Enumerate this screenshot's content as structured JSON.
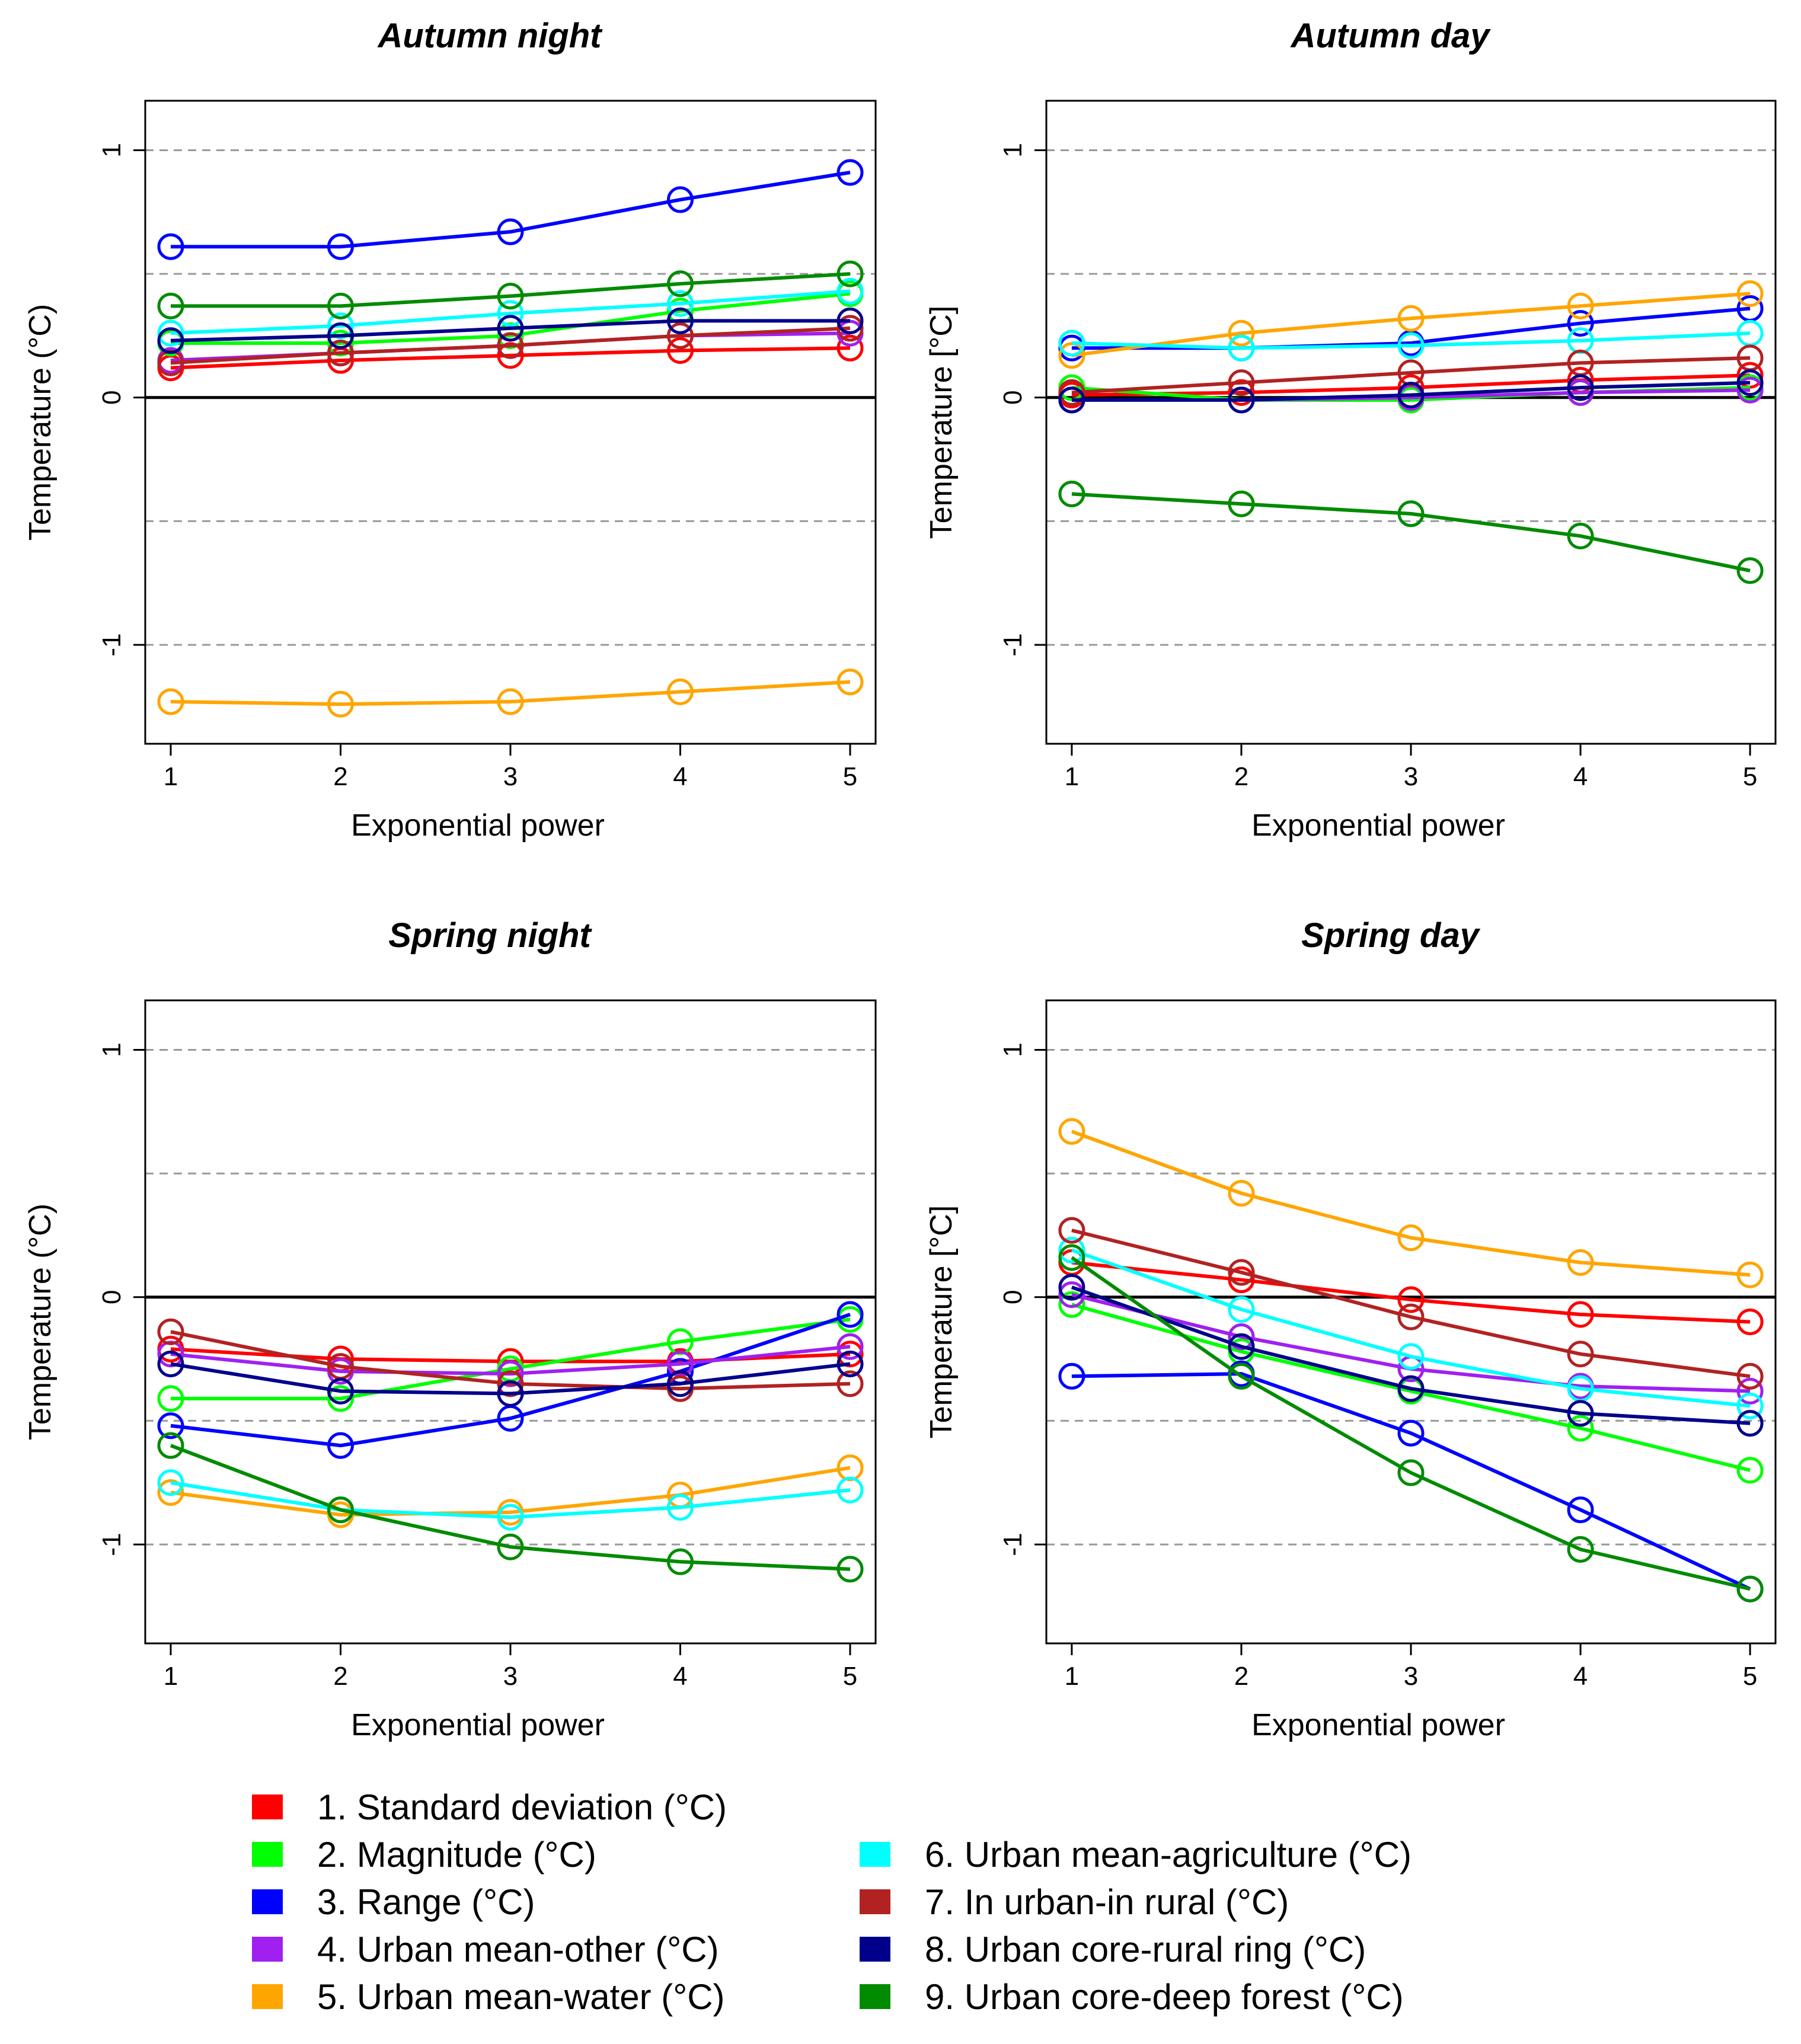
{
  "chart_data": [
    {
      "type": "line",
      "title": "Autumn night",
      "xlabel": "Exponential power",
      "ylabel": "Temperature (°C)",
      "x": [
        1,
        2,
        3,
        4,
        5
      ],
      "ylim": [
        -1.4,
        1.2
      ],
      "yticks": [
        -1,
        0,
        1
      ],
      "dashed_gridlines": [
        1,
        0.5,
        -0.5,
        -1
      ],
      "solid_reference": 0,
      "series": [
        {
          "id": 1,
          "values": [
            0.12,
            0.15,
            0.17,
            0.19,
            0.2
          ]
        },
        {
          "id": 2,
          "values": [
            0.22,
            0.22,
            0.25,
            0.35,
            0.42
          ]
        },
        {
          "id": 3,
          "values": [
            0.61,
            0.61,
            0.67,
            0.8,
            0.91
          ]
        },
        {
          "id": 4,
          "values": [
            0.15,
            0.18,
            0.21,
            0.25,
            0.26
          ]
        },
        {
          "id": 5,
          "values": [
            -1.23,
            -1.24,
            -1.23,
            -1.19,
            -1.15
          ]
        },
        {
          "id": 6,
          "values": [
            0.26,
            0.29,
            0.34,
            0.38,
            0.43
          ]
        },
        {
          "id": 7,
          "values": [
            0.14,
            0.18,
            0.21,
            0.25,
            0.28
          ]
        },
        {
          "id": 8,
          "values": [
            0.23,
            0.25,
            0.28,
            0.31,
            0.31
          ]
        },
        {
          "id": 9,
          "values": [
            0.37,
            0.37,
            0.41,
            0.46,
            0.5
          ]
        }
      ]
    },
    {
      "type": "line",
      "title": "Autumn day",
      "xlabel": "Exponential power",
      "ylabel": "Temperature [°C]",
      "x": [
        1,
        2,
        3,
        4,
        5
      ],
      "ylim": [
        -1.4,
        1.2
      ],
      "yticks": [
        -1,
        0,
        1
      ],
      "dashed_gridlines": [
        1,
        0.5,
        -0.5,
        -1
      ],
      "solid_reference": 0,
      "series": [
        {
          "id": 1,
          "values": [
            0.01,
            0.02,
            0.04,
            0.07,
            0.09
          ]
        },
        {
          "id": 2,
          "values": [
            0.04,
            -0.01,
            -0.01,
            0.02,
            0.04
          ]
        },
        {
          "id": 3,
          "values": [
            0.2,
            0.2,
            0.22,
            0.3,
            0.36
          ]
        },
        {
          "id": 4,
          "values": [
            -0.01,
            -0.01,
            0.0,
            0.02,
            0.03
          ]
        },
        {
          "id": 5,
          "values": [
            0.17,
            0.26,
            0.32,
            0.37,
            0.42
          ]
        },
        {
          "id": 6,
          "values": [
            0.22,
            0.2,
            0.21,
            0.23,
            0.26
          ]
        },
        {
          "id": 7,
          "values": [
            0.02,
            0.06,
            0.1,
            0.14,
            0.16
          ]
        },
        {
          "id": 8,
          "values": [
            -0.01,
            -0.01,
            0.01,
            0.04,
            0.06
          ]
        },
        {
          "id": 9,
          "values": [
            -0.39,
            -0.43,
            -0.47,
            -0.56,
            -0.7
          ]
        }
      ]
    },
    {
      "type": "line",
      "title": "Spring night",
      "xlabel": "Exponential power",
      "ylabel": "Temperature (°C)",
      "x": [
        1,
        2,
        3,
        4,
        5
      ],
      "ylim": [
        -1.4,
        1.2
      ],
      "yticks": [
        -1,
        0,
        1
      ],
      "dashed_gridlines": [
        1,
        0.5,
        -0.5,
        -1
      ],
      "solid_reference": 0,
      "series": [
        {
          "id": 1,
          "values": [
            -0.21,
            -0.25,
            -0.26,
            -0.26,
            -0.23
          ]
        },
        {
          "id": 2,
          "values": [
            -0.41,
            -0.41,
            -0.29,
            -0.18,
            -0.09
          ]
        },
        {
          "id": 3,
          "values": [
            -0.52,
            -0.6,
            -0.49,
            -0.3,
            -0.07
          ]
        },
        {
          "id": 4,
          "values": [
            -0.23,
            -0.3,
            -0.31,
            -0.27,
            -0.2
          ]
        },
        {
          "id": 5,
          "values": [
            -0.79,
            -0.88,
            -0.87,
            -0.8,
            -0.69
          ]
        },
        {
          "id": 6,
          "values": [
            -0.75,
            -0.86,
            -0.89,
            -0.85,
            -0.78
          ]
        },
        {
          "id": 7,
          "values": [
            -0.14,
            -0.28,
            -0.35,
            -0.37,
            -0.35
          ]
        },
        {
          "id": 8,
          "values": [
            -0.27,
            -0.38,
            -0.39,
            -0.35,
            -0.27
          ]
        },
        {
          "id": 9,
          "values": [
            -0.6,
            -0.86,
            -1.01,
            -1.07,
            -1.1
          ]
        }
      ]
    },
    {
      "type": "line",
      "title": "Spring day",
      "xlabel": "Exponential power",
      "ylabel": "Temperature [°C]",
      "x": [
        1,
        2,
        3,
        4,
        5
      ],
      "ylim": [
        -1.4,
        1.2
      ],
      "yticks": [
        -1,
        0,
        1
      ],
      "dashed_gridlines": [
        1,
        0.5,
        -0.5,
        -1
      ],
      "solid_reference": 0,
      "series": [
        {
          "id": 1,
          "values": [
            0.14,
            0.07,
            -0.01,
            -0.07,
            -0.1
          ]
        },
        {
          "id": 2,
          "values": [
            -0.03,
            -0.22,
            -0.38,
            -0.53,
            -0.7
          ]
        },
        {
          "id": 3,
          "values": [
            -0.32,
            -0.31,
            -0.55,
            -0.86,
            -1.18
          ]
        },
        {
          "id": 4,
          "values": [
            0.01,
            -0.16,
            -0.29,
            -0.36,
            -0.38
          ]
        },
        {
          "id": 5,
          "values": [
            0.67,
            0.42,
            0.24,
            0.14,
            0.09
          ]
        },
        {
          "id": 6,
          "values": [
            0.19,
            -0.05,
            -0.24,
            -0.37,
            -0.44
          ]
        },
        {
          "id": 7,
          "values": [
            0.27,
            0.1,
            -0.08,
            -0.23,
            -0.32
          ]
        },
        {
          "id": 8,
          "values": [
            0.04,
            -0.2,
            -0.37,
            -0.47,
            -0.51
          ]
        },
        {
          "id": 9,
          "values": [
            0.16,
            -0.32,
            -0.71,
            -1.02,
            -1.18
          ]
        }
      ]
    }
  ],
  "legend": [
    {
      "id": 1,
      "label": "1. Standard deviation (°C)",
      "color": "#ff0000"
    },
    {
      "id": 2,
      "label": "2. Magnitude (°C)",
      "color": "#00ff00"
    },
    {
      "id": 3,
      "label": "3. Range (°C)",
      "color": "#0000ff"
    },
    {
      "id": 4,
      "label": "4. Urban mean-other (°C)",
      "color": "#a020f0"
    },
    {
      "id": 5,
      "label": "5. Urban mean-water (°C)",
      "color": "#ffa500"
    },
    {
      "id": 6,
      "label": "6. Urban mean-agriculture (°C)",
      "color": "#00ffff"
    },
    {
      "id": 7,
      "label": "7. In urban-in rural (°C)",
      "color": "#b22222"
    },
    {
      "id": 8,
      "label": "8. Urban core-rural ring (°C)",
      "color": "#00008b"
    },
    {
      "id": 9,
      "label": "9. Urban core-deep forest (°C)",
      "color": "#008b00"
    }
  ]
}
